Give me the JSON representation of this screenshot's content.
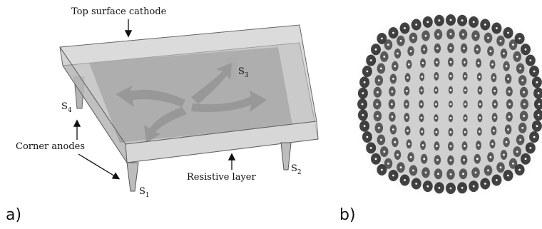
{
  "panel_a": {
    "label": "a)",
    "top_label": "Top surface cathode",
    "anodes_label": "Corner anodes",
    "resistive_label": "Resistive layer",
    "anodes": [
      {
        "letter": "S",
        "index": "1"
      },
      {
        "letter": "S",
        "index": "2"
      },
      {
        "letter": "S",
        "index": "3"
      },
      {
        "letter": "S",
        "index": "4"
      }
    ]
  },
  "panel_b": {
    "label": "b)"
  }
}
